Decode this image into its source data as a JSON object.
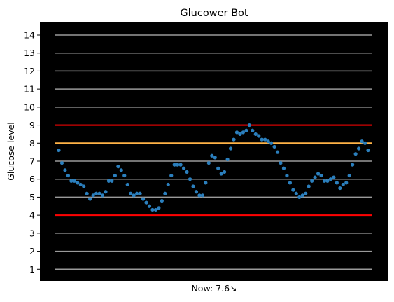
{
  "chart_data": {
    "type": "scatter",
    "title": "Glucower Bot",
    "xlabel": "Now: 7.6↘",
    "ylabel": "Glucose level",
    "ylim": [
      0.35,
      14.7
    ],
    "yticks": [
      "1",
      "2",
      "3",
      "4",
      "5",
      "6",
      "7",
      "8",
      "9",
      "10",
      "11",
      "12",
      "13",
      "14"
    ],
    "grid": true,
    "background": "#000000",
    "grid_color": "#9a9a9a",
    "point_color": "#2b7fbd",
    "reference_lines": [
      {
        "name": "low-threshold",
        "y": 4,
        "color": "#ff0000"
      },
      {
        "name": "target",
        "y": 8,
        "color": "#ffb347"
      },
      {
        "name": "high-threshold",
        "y": 9,
        "color": "#ff0000"
      }
    ],
    "series": [
      {
        "name": "glucose",
        "values": [
          7.6,
          6.9,
          6.5,
          6.2,
          5.9,
          5.9,
          5.8,
          5.7,
          5.6,
          5.2,
          4.9,
          5.1,
          5.2,
          5.2,
          5.1,
          5.3,
          5.9,
          5.9,
          6.2,
          6.7,
          6.5,
          6.2,
          5.7,
          5.2,
          5.1,
          5.2,
          5.2,
          4.9,
          4.7,
          4.5,
          4.3,
          4.3,
          4.4,
          4.8,
          5.2,
          5.7,
          6.2,
          6.8,
          6.8,
          6.8,
          6.6,
          6.4,
          6.0,
          5.6,
          5.3,
          5.1,
          5.1,
          5.8,
          6.9,
          7.3,
          7.2,
          6.6,
          6.3,
          6.4,
          7.1,
          7.7,
          8.2,
          8.6,
          8.5,
          8.6,
          8.7,
          9.0,
          8.7,
          8.5,
          8.4,
          8.2,
          8.2,
          8.1,
          8.0,
          7.8,
          7.5,
          6.9,
          6.6,
          6.2,
          5.8,
          5.4,
          5.2,
          5.0,
          5.1,
          5.2,
          5.6,
          5.9,
          6.1,
          6.3,
          6.2,
          5.9,
          5.9,
          6.0,
          6.1,
          5.8,
          5.5,
          5.7,
          5.8,
          6.2,
          6.8,
          7.4,
          7.7,
          8.1,
          8.0,
          7.6
        ]
      }
    ]
  }
}
